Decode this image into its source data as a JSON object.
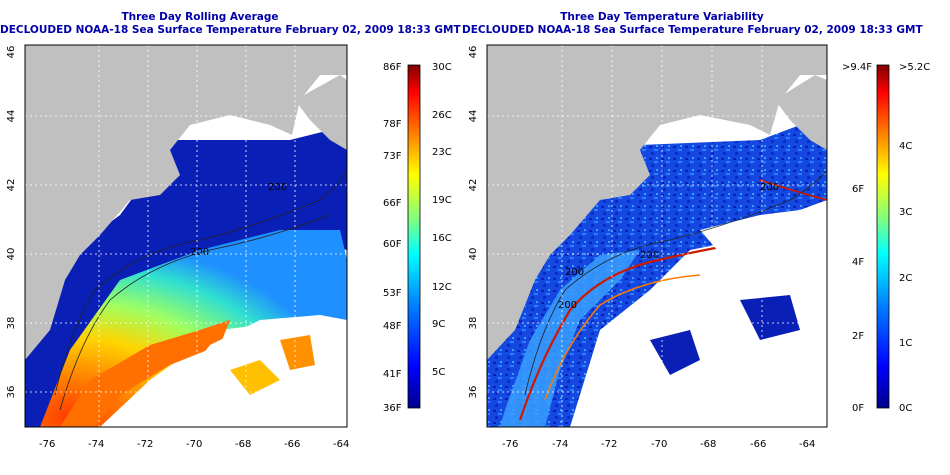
{
  "left_panel": {
    "title": "Three Day Rolling Average",
    "subtitle": "DECLOUDED NOAA-18 Sea Surface Temperature February 02, 2009 18:33 GMT",
    "x_ticks": [
      "-76",
      "-74",
      "-72",
      "-70",
      "-68",
      "-66",
      "-64"
    ],
    "y_ticks": [
      "46",
      "44",
      "42",
      "40",
      "38",
      "36"
    ],
    "colorbar": {
      "left_labels": [
        "86F",
        "78F",
        "73F",
        "66F",
        "60F",
        "53F",
        "48F",
        "41F",
        "36F"
      ],
      "right_labels": [
        "30C",
        "26C",
        "23C",
        "19C",
        "16C",
        "12C",
        "9C",
        "5C"
      ],
      "colors": [
        "#00008b",
        "#0000ff",
        "#0080ff",
        "#00ffff",
        "#80ff80",
        "#ffff00",
        "#ff8000",
        "#ff0000",
        "#800000"
      ]
    },
    "contour_labels": [
      "200",
      "200"
    ]
  },
  "right_panel": {
    "title": "Three Day Temperature Variability",
    "subtitle": "DECLOUDED NOAA-18 Sea Surface Temperature February 02, 2009 18:33 GMT",
    "x_ticks": [
      "-76",
      "-74",
      "-72",
      "-70",
      "-68",
      "-66",
      "-64"
    ],
    "y_ticks": [
      "46",
      "44",
      "42",
      "40",
      "38",
      "36"
    ],
    "colorbar": {
      "left_labels": [
        ">9.4F",
        "6F",
        "4F",
        "2F",
        "0F"
      ],
      "right_labels": [
        ">5.2C",
        "4C",
        "3C",
        "2C",
        "1C",
        "0C"
      ],
      "colors": [
        "#00008b",
        "#0000ff",
        "#0080ff",
        "#00ffff",
        "#80ff80",
        "#ffff00",
        "#ff8000",
        "#ff0000",
        "#800000"
      ]
    },
    "contour_labels": [
      "200",
      "200",
      "200",
      "200"
    ]
  },
  "colors": {
    "land": "#c0c0c0",
    "cloud": "#ffffff",
    "title": "#0000aa",
    "cold": "#0a1fb5",
    "warm": "#ff6a00"
  }
}
